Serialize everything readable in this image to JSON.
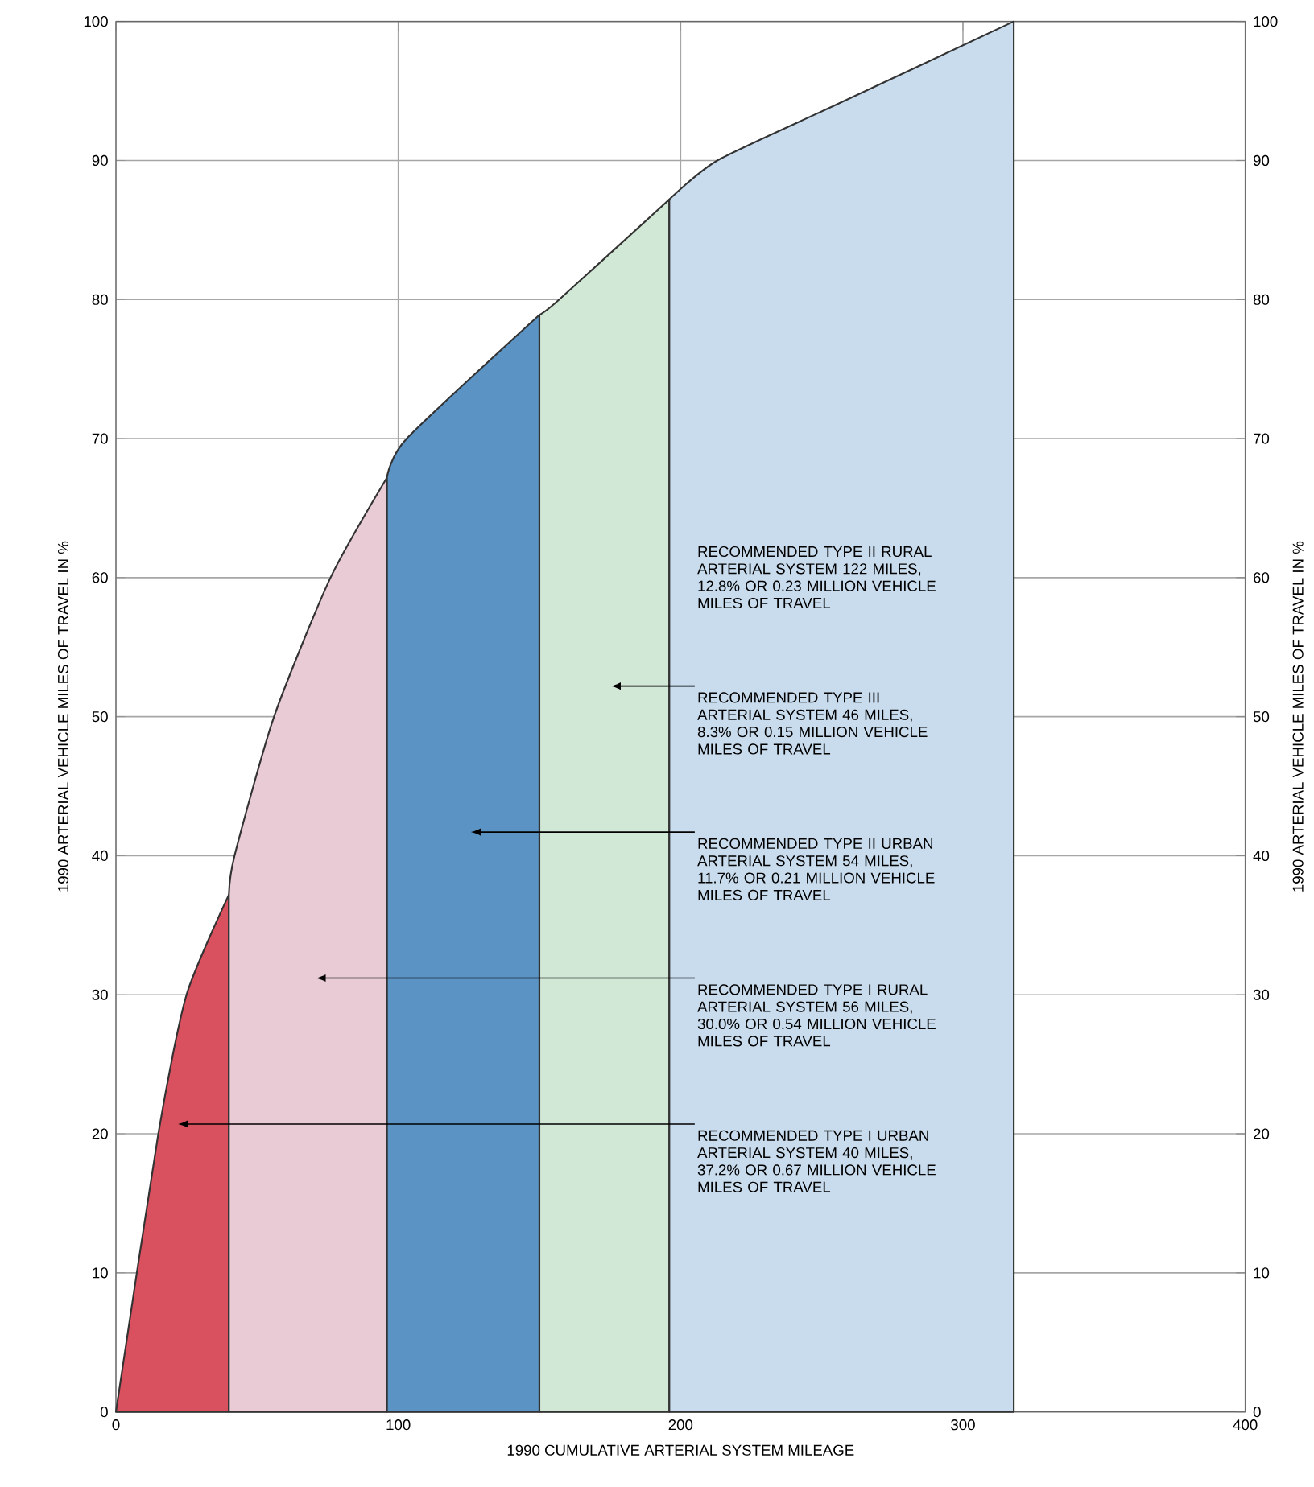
{
  "chart_data": {
    "type": "area",
    "xlabel": "1990 CUMULATIVE ARTERIAL SYSTEM MILEAGE",
    "ylabel": "1990 ARTERIAL VEHICLE MILES OF TRAVEL IN %",
    "y2label": "1990 ARTERIAL VEHICLE MILES OF TRAVEL IN %",
    "xlim": [
      0,
      400
    ],
    "xticks": [
      0,
      100,
      200,
      300,
      400
    ],
    "ylim": [
      0,
      100
    ],
    "yticks": [
      0,
      10,
      20,
      30,
      40,
      50,
      60,
      70,
      80,
      90,
      100
    ],
    "y2lim": [
      0,
      100
    ],
    "y2ticks": [
      0,
      10,
      20,
      30,
      40,
      50,
      60,
      70,
      80,
      90,
      100
    ],
    "grid": true,
    "series": [
      {
        "color": "#d9505f",
        "x": [
          0,
          15,
          25,
          40
        ],
        "values": [
          0,
          20,
          30,
          37.2
        ]
      },
      {
        "color": "#e9cbd6",
        "x": [
          40,
          42,
          56,
          76,
          96
        ],
        "values": [
          37.2,
          40,
          50,
          60,
          67.2
        ]
      },
      {
        "color": "#5b93c4",
        "x": [
          96,
          103,
          150
        ],
        "values": [
          67.2,
          70,
          78.9
        ]
      },
      {
        "color": "#d2e8d6",
        "x": [
          150,
          157,
          196
        ],
        "values": [
          78.9,
          80,
          87.2
        ]
      },
      {
        "color": "#c9dcee",
        "x": [
          196,
          213,
          255,
          318
        ],
        "values": [
          87.2,
          90,
          94,
          100
        ]
      }
    ],
    "annotations": [
      "RECOMMENDED TYPE II RURAL ARTERIAL SYSTEM 122 MILES, 12.8% OR 0.23 MILLION VEHICLE MILES OF TRAVEL",
      "RECOMMENDED TYPE III ARTERIAL SYSTEM 46 MILES, 8.3% OR 0.15 MILLION VEHICLE MILES OF TRAVEL",
      "RECOMMENDED TYPE II URBAN ARTERIAL SYSTEM 54 MILES, 11.7% OR 0.21 MILLION VEHICLE MILES OF TRAVEL",
      "RECOMMENDED TYPE I RURAL ARTERIAL SYSTEM 56 MILES, 30.0% OR 0.54 MILLION VEHICLE MILES OF TRAVEL",
      "RECOMMENDED TYPE I URBAN ARTERIAL SYSTEM 40 MILES, 37.2% OR 0.67 MILLION VEHICLE MILES OF TRAVEL"
    ]
  }
}
